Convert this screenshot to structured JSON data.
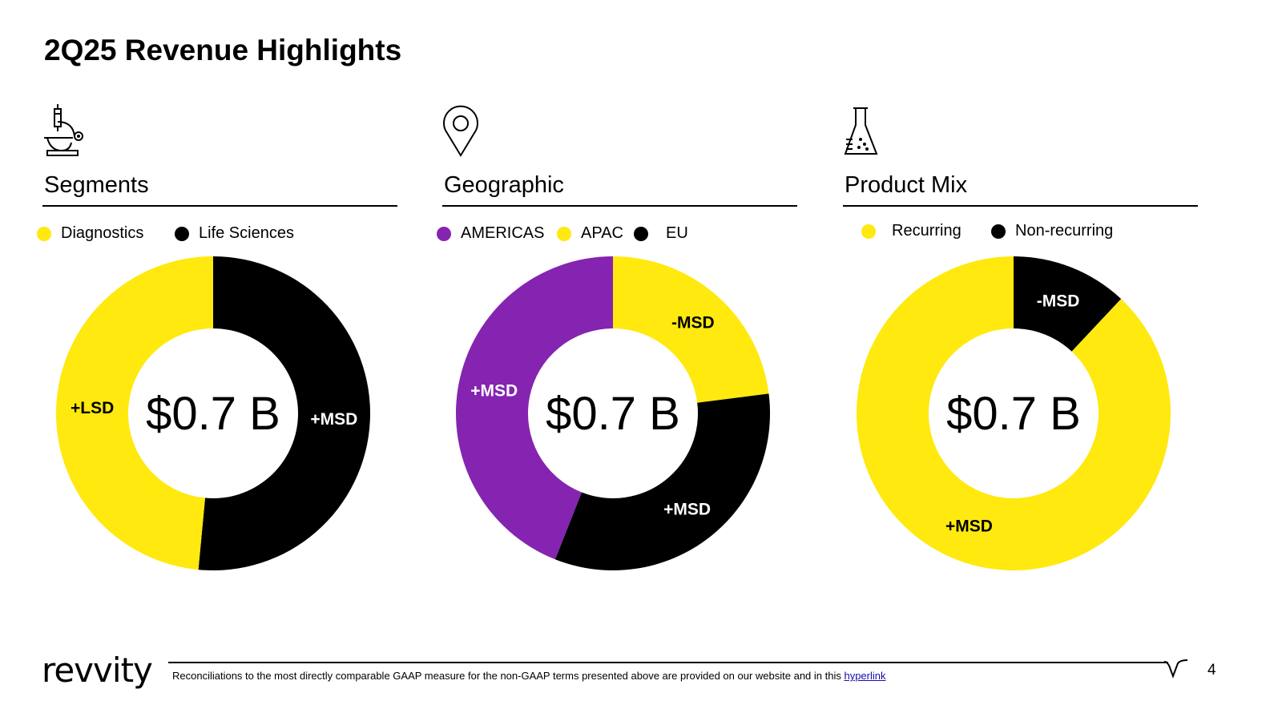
{
  "page": {
    "title": "2Q25 Revenue Highlights",
    "page_number": "4"
  },
  "colors": {
    "yellow": "#FFE90F",
    "black": "#000000",
    "purple": "#8524B0",
    "white": "#FFFFFF"
  },
  "panels": [
    {
      "heading": "Segments",
      "icon": "microscope-icon",
      "legend": [
        {
          "label": "Diagnostics",
          "color": "#FFE90F"
        },
        {
          "label": "Life Sciences",
          "color": "#000000"
        }
      ]
    },
    {
      "heading": "Geographic",
      "icon": "location-pin-icon",
      "legend": [
        {
          "label": "AMERICAS",
          "color": "#8524B0"
        },
        {
          "label": "APAC",
          "color": "#FFE90F"
        },
        {
          "label": "EU",
          "color": "#000000"
        }
      ]
    },
    {
      "heading": "Product Mix",
      "icon": "flask-icon",
      "legend": [
        {
          "label": "Recurring",
          "color": "#FFE90F"
        },
        {
          "label": "Non-recurring",
          "color": "#000000"
        }
      ]
    }
  ],
  "chart_data": [
    {
      "type": "pie",
      "donut": true,
      "center_label": "$0.7 B",
      "slices": [
        {
          "name": "Life Sciences",
          "value": 51.5,
          "label": "+MSD",
          "color": "#000000",
          "label_color": "#FFFFFF"
        },
        {
          "name": "Diagnostics",
          "value": 48.5,
          "label": "+LSD",
          "color": "#FFE90F",
          "label_color": "#000000"
        }
      ]
    },
    {
      "type": "pie",
      "donut": true,
      "center_label": "$0.7 B",
      "slices": [
        {
          "name": "APAC",
          "value": 23,
          "label": "-MSD",
          "color": "#FFE90F",
          "label_color": "#000000"
        },
        {
          "name": "EU",
          "value": 33,
          "label": "+MSD",
          "color": "#000000",
          "label_color": "#FFFFFF"
        },
        {
          "name": "AMERICAS",
          "value": 44,
          "label": "+MSD",
          "color": "#8524B0",
          "label_color": "#FFFFFF"
        }
      ]
    },
    {
      "type": "pie",
      "donut": true,
      "center_label": "$0.7 B",
      "slices": [
        {
          "name": "Non-recurring",
          "value": 12,
          "label": "-MSD",
          "color": "#000000",
          "label_color": "#FFFFFF"
        },
        {
          "name": "Recurring",
          "value": 88,
          "label": "+MSD",
          "color": "#FFE90F",
          "label_color": "#000000"
        }
      ]
    }
  ],
  "footer": {
    "logo_text": "revvity",
    "note": "Reconciliations to the most directly comparable GAAP measure for the non-GAAP terms presented above are provided on our website and in this ",
    "link_text": "hyperlink"
  }
}
